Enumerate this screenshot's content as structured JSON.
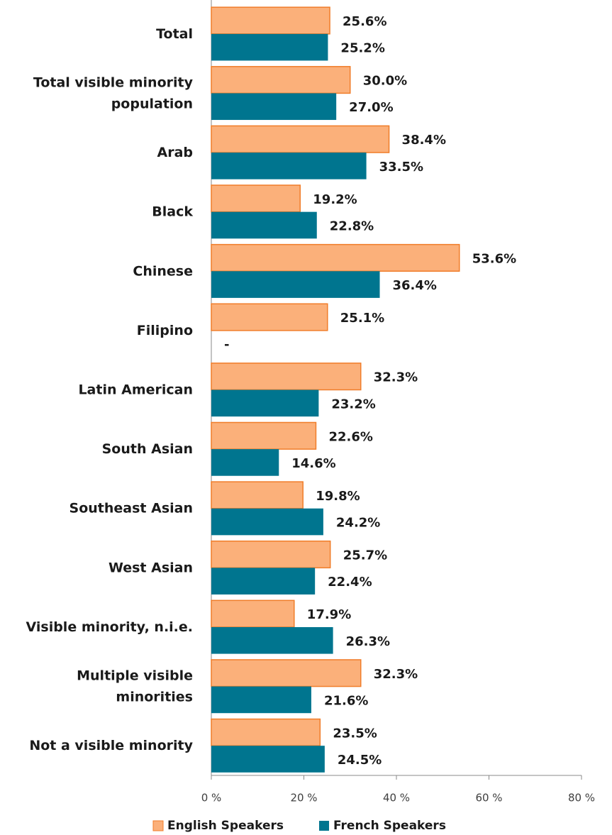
{
  "chart_data": {
    "type": "bar",
    "orientation": "horizontal",
    "categories": [
      "Total",
      "Total visible minority population",
      "Arab",
      "Black",
      "Chinese",
      "Filipino",
      "Latin American",
      "South Asian",
      "Southeast Asian",
      "West Asian",
      "Visible minority, n.i.e.",
      "Multiple visible minorities",
      "Not a visible minority"
    ],
    "series": [
      {
        "name": "English Speakers",
        "color": "#FBB07A",
        "border": "#F07D2A",
        "values": [
          25.6,
          30.0,
          38.4,
          19.2,
          53.6,
          25.1,
          32.3,
          22.6,
          19.8,
          25.7,
          17.9,
          32.3,
          23.5
        ],
        "value_labels": [
          "25.6%",
          "30.0%",
          "38.4%",
          "19.2%",
          "53.6%",
          "25.1%",
          "32.3%",
          "22.6%",
          "19.8%",
          "25.7%",
          "17.9%",
          "32.3%",
          "23.5%"
        ]
      },
      {
        "name": "French Speakers",
        "color": "#00758F",
        "values": [
          25.2,
          27.0,
          33.5,
          22.8,
          36.4,
          null,
          23.2,
          14.6,
          24.2,
          22.4,
          26.3,
          21.6,
          24.5
        ],
        "value_labels": [
          "25.2%",
          "27.0%",
          "33.5%",
          "22.8%",
          "36.4%",
          "-",
          "23.2%",
          "14.6%",
          "24.2%",
          "22.4%",
          "26.3%",
          "21.6%",
          "24.5%"
        ]
      }
    ],
    "xlim": [
      0,
      80
    ],
    "xticks": [
      {
        "value": 0,
        "label": "0 %"
      },
      {
        "value": 20,
        "label": "20 %"
      },
      {
        "value": 40,
        "label": "40 %"
      },
      {
        "value": 60,
        "label": "60 %"
      },
      {
        "value": 80,
        "label": "80 %"
      }
    ],
    "legend": "bottom"
  }
}
